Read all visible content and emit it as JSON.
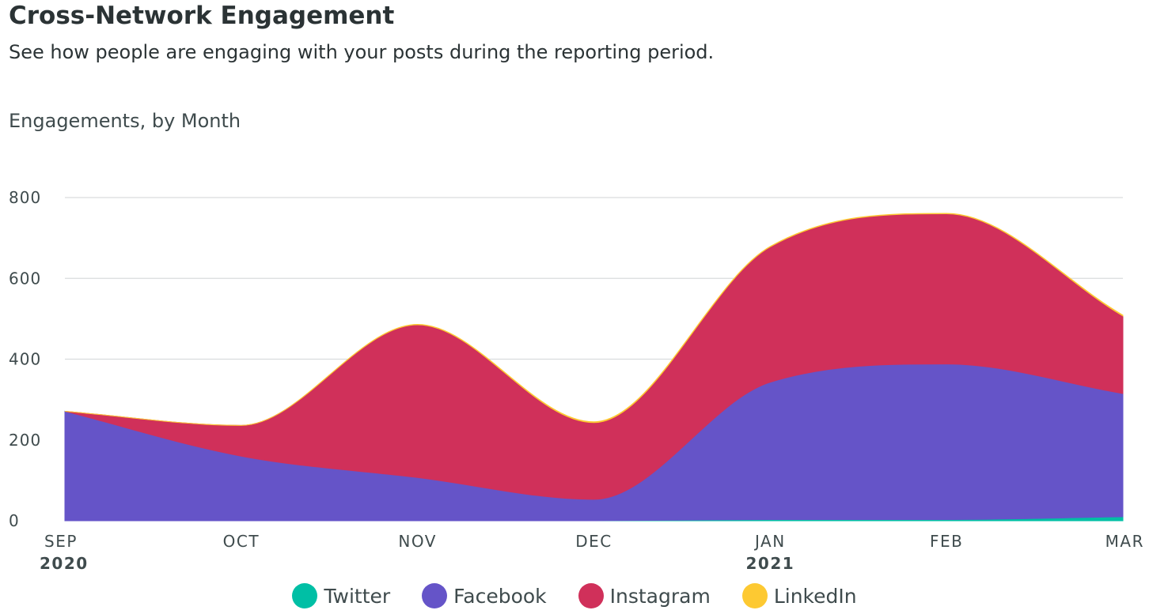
{
  "header": {
    "title": "Cross-Network Engagement",
    "subtitle": "See how people are engaging with your posts during the reporting period.",
    "chart_heading": "Engagements, by Month"
  },
  "chart_data": {
    "type": "area",
    "stacked": true,
    "title": "Engagements, by Month",
    "categories": [
      "SEP",
      "OCT",
      "NOV",
      "DEC",
      "JAN",
      "FEB",
      "MAR"
    ],
    "year_labels": {
      "0": "2020",
      "4": "2021"
    },
    "ylim": [
      0,
      800
    ],
    "yticks": [
      0,
      200,
      400,
      600,
      800
    ],
    "grid": true,
    "legend_position": "bottom",
    "series": [
      {
        "name": "Twitter",
        "color": "#00bfa5",
        "values": [
          0,
          0,
          0,
          0,
          3,
          3,
          10
        ]
      },
      {
        "name": "Facebook",
        "color": "#6554c8",
        "values": [
          271,
          160,
          107,
          53,
          340,
          385,
          305
        ]
      },
      {
        "name": "Instagram",
        "color": "#d0305a",
        "values": [
          0,
          76,
          378,
          190,
          335,
          372,
          192
        ]
      },
      {
        "name": "LinkedIn",
        "color": "#fdc932",
        "values": [
          0,
          0,
          1,
          2,
          1,
          1,
          2
        ]
      }
    ]
  }
}
